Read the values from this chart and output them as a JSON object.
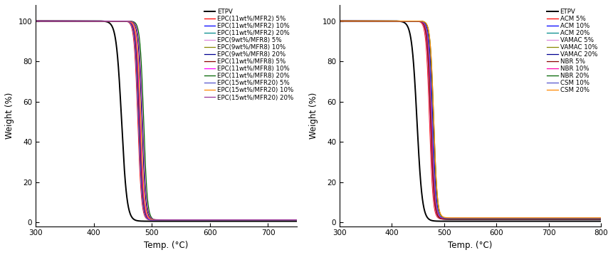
{
  "xlabel": "Temp. (°C)",
  "ylabel": "Weight (%)",
  "xlim_left": [
    300,
    750
  ],
  "xlim_right": [
    300,
    800
  ],
  "ylim": [
    -2,
    108
  ],
  "yticks": [
    0,
    20,
    40,
    60,
    80,
    100
  ],
  "xticks_left": [
    300,
    400,
    500,
    600,
    700
  ],
  "xticks_right": [
    300,
    400,
    500,
    600,
    700,
    800
  ],
  "left_series": [
    {
      "label": "ETPV",
      "color": "#000000",
      "midpoint": 448,
      "k": 0.22,
      "residual": 0.5
    },
    {
      "label": "EPC(11wt%/MFR2) 5%",
      "color": "#FF0000",
      "midpoint": 476,
      "k": 0.32,
      "residual": 1.0
    },
    {
      "label": "EPC(11wt%/MFR2) 10%",
      "color": "#0000FF",
      "midpoint": 478,
      "k": 0.32,
      "residual": 1.0
    },
    {
      "label": "EPC(11wt%/MFR2) 20%",
      "color": "#008B8B",
      "midpoint": 479,
      "k": 0.32,
      "residual": 1.0
    },
    {
      "label": "EPC(9wt%/MFR8) 5%",
      "color": "#DD88DD",
      "midpoint": 477,
      "k": 0.32,
      "residual": 1.0
    },
    {
      "label": "EPC(9wt%/MFR8) 10%",
      "color": "#888800",
      "midpoint": 480,
      "k": 0.32,
      "residual": 1.0
    },
    {
      "label": "EPC(9wt%/MFR8) 20%",
      "color": "#000090",
      "midpoint": 483,
      "k": 0.32,
      "residual": 1.0
    },
    {
      "label": "EPC(11wt%/MFR8) 5%",
      "color": "#8B0000",
      "midpoint": 478,
      "k": 0.32,
      "residual": 1.0
    },
    {
      "label": "EPC(11wt%/MFR8) 10%",
      "color": "#FF00FF",
      "midpoint": 480,
      "k": 0.32,
      "residual": 1.0
    },
    {
      "label": "EPC(11wt%/MFR8) 20%",
      "color": "#006400",
      "midpoint": 486,
      "k": 0.32,
      "residual": 1.0
    },
    {
      "label": "EPC(15wt%/MFR20) 5%",
      "color": "#5555CC",
      "midpoint": 477,
      "k": 0.32,
      "residual": 1.0
    },
    {
      "label": "EPC(15wt%/MFR20) 10%",
      "color": "#FF8800",
      "midpoint": 481,
      "k": 0.32,
      "residual": 1.2
    },
    {
      "label": "EPC(15wt%/MFR20) 20%",
      "color": "#993399",
      "midpoint": 484,
      "k": 0.32,
      "residual": 1.2
    }
  ],
  "right_series": [
    {
      "label": "ETPV",
      "color": "#000000",
      "midpoint": 448,
      "k": 0.2,
      "residual": 0.5
    },
    {
      "label": "ACM 5%",
      "color": "#FF0000",
      "midpoint": 472,
      "k": 0.3,
      "residual": 1.5
    },
    {
      "label": "ACM 10%",
      "color": "#0000FF",
      "midpoint": 474,
      "k": 0.3,
      "residual": 1.5
    },
    {
      "label": "ACM 20%",
      "color": "#008B8B",
      "midpoint": 476,
      "k": 0.3,
      "residual": 1.5
    },
    {
      "label": "VAMAC 5%",
      "color": "#DD88DD",
      "midpoint": 473,
      "k": 0.3,
      "residual": 1.5
    },
    {
      "label": "VAMAC 10%",
      "color": "#888800",
      "midpoint": 475,
      "k": 0.3,
      "residual": 1.5
    },
    {
      "label": "VAMAC 20%",
      "color": "#000090",
      "midpoint": 478,
      "k": 0.3,
      "residual": 1.5
    },
    {
      "label": "NBR 5%",
      "color": "#8B0000",
      "midpoint": 474,
      "k": 0.3,
      "residual": 1.5
    },
    {
      "label": "NBR 10%",
      "color": "#FF00AA",
      "midpoint": 476,
      "k": 0.3,
      "residual": 1.8
    },
    {
      "label": "NBR 20%",
      "color": "#006400",
      "midpoint": 480,
      "k": 0.3,
      "residual": 1.8
    },
    {
      "label": "CSM 10%",
      "color": "#5555CC",
      "midpoint": 477,
      "k": 0.3,
      "residual": 2.0
    },
    {
      "label": "CSM 20%",
      "color": "#FF8800",
      "midpoint": 480,
      "k": 0.3,
      "residual": 2.2
    }
  ],
  "legend_fontsize": 6.2,
  "axis_fontsize": 8.5,
  "tick_fontsize": 7.5
}
